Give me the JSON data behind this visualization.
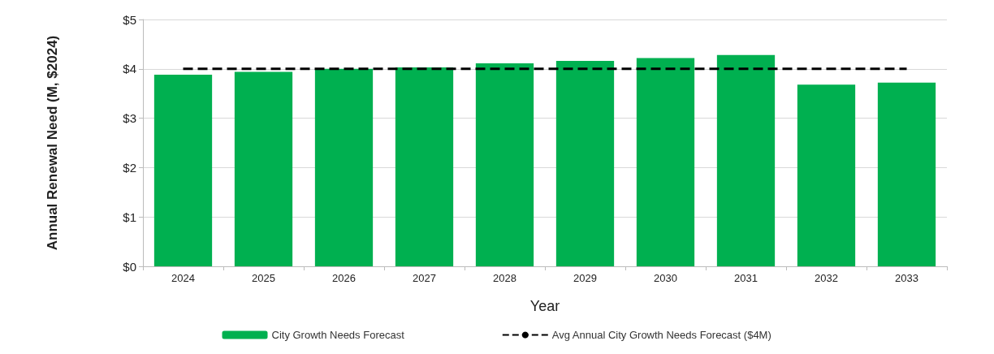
{
  "chart_data": {
    "type": "bar",
    "xlabel": "Year",
    "ylabel": "Annual Renewal Need (M, $2024)",
    "categories": [
      "2024",
      "2025",
      "2026",
      "2027",
      "2028",
      "2029",
      "2030",
      "2031",
      "2032",
      "2033"
    ],
    "series": [
      {
        "name": "City Growth Needs Forecast",
        "color": "#00b050",
        "values": [
          3.88,
          3.94,
          4.0,
          4.03,
          4.11,
          4.16,
          4.22,
          4.28,
          3.68,
          3.72
        ]
      },
      {
        "name": "Avg Annual City Growth Needs Forecast ($4M)",
        "type": "line",
        "color": "#000000",
        "line_style": "dashed",
        "marker": "none",
        "values": [
          4,
          4,
          4,
          4,
          4,
          4,
          4,
          4,
          4,
          4
        ]
      }
    ],
    "ylim": [
      0,
      5
    ],
    "yticks": [
      {
        "value": 0,
        "label": "$0"
      },
      {
        "value": 1,
        "label": "$1"
      },
      {
        "value": 2,
        "label": "$2"
      },
      {
        "value": 3,
        "label": "$3"
      },
      {
        "value": 4,
        "label": "$4"
      },
      {
        "value": 5,
        "label": "$5"
      }
    ],
    "grid": "y",
    "legend": "bottom"
  }
}
